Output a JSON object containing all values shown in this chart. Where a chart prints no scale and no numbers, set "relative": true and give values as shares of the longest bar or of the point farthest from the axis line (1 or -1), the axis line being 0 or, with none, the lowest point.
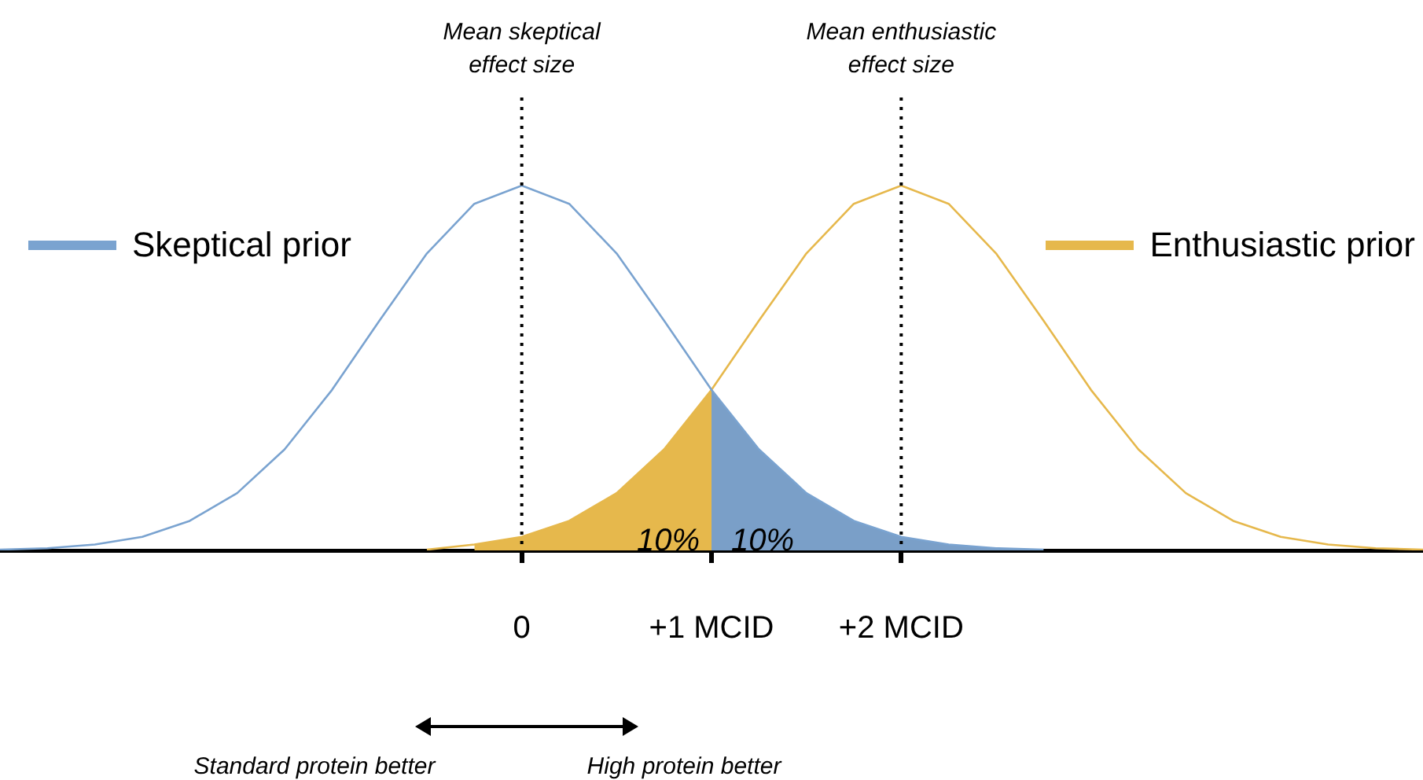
{
  "chart_data": {
    "type": "line",
    "relative": true,
    "marker": "none",
    "grid": false,
    "legend": "top",
    "xlim": [
      -2.75,
      4.75
    ],
    "xticks": [
      {
        "value": 0,
        "label": "0"
      },
      {
        "value": 1,
        "label": "+1 MCID"
      },
      {
        "value": 2,
        "label": "+2 MCID"
      }
    ],
    "series": [
      {
        "name": "Skeptical prior",
        "color": "#7aa3d0",
        "x": [
          -2.75,
          -2.5,
          -2.25,
          -2,
          -1.75,
          -1.5,
          -1.25,
          -1,
          -0.75,
          -0.5,
          -0.25,
          0,
          0.25,
          0.5,
          0.75,
          1,
          1.25,
          1.5,
          1.75,
          2,
          2.25,
          2.5,
          2.75
        ],
        "values": [
          0.002,
          0.006,
          0.016,
          0.037,
          0.081,
          0.157,
          0.277,
          0.44,
          0.63,
          0.814,
          0.95,
          1,
          0.95,
          0.814,
          0.63,
          0.44,
          0.277,
          0.157,
          0.081,
          0.037,
          0.016,
          0.006,
          0.002
        ]
      },
      {
        "name": "Enthusiastic prior",
        "color": "#e6b84c",
        "x": [
          -0.5,
          -0.25,
          0,
          0.25,
          0.5,
          0.75,
          1,
          1.25,
          1.5,
          1.75,
          2,
          2.25,
          2.5,
          2.75,
          3,
          3.25,
          3.5,
          3.75,
          4,
          4.25,
          4.5,
          4.75
        ],
        "values": [
          0.002,
          0.016,
          0.037,
          0.081,
          0.157,
          0.277,
          0.44,
          0.63,
          0.814,
          0.95,
          1,
          0.95,
          0.814,
          0.63,
          0.44,
          0.277,
          0.157,
          0.081,
          0.037,
          0.016,
          0.006,
          0.002
        ]
      },
      {
        "type": "area",
        "color": "#e6b84c",
        "x": [
          -0.25,
          0,
          0.25,
          0.5,
          0.75,
          1
        ],
        "values": [
          0.016,
          0.037,
          0.081,
          0.157,
          0.277,
          0.44
        ]
      },
      {
        "type": "area",
        "color": "#7a9fc8",
        "x": [
          1,
          1.25,
          1.5,
          1.75,
          2,
          2.25,
          2.5,
          2.75
        ],
        "values": [
          0.44,
          0.277,
          0.157,
          0.081,
          0.037,
          0.016,
          0.006,
          0.002
        ]
      }
    ],
    "ref_lines": [
      {
        "axis": "x",
        "value": 0,
        "label": "Mean skeptical effect size",
        "line_style": "dotted",
        "color": "#000000"
      },
      {
        "axis": "x",
        "value": 2,
        "label": "Mean enthusiastic effect size",
        "line_style": "dotted",
        "color": "#000000"
      }
    ],
    "annotations": [
      "10%",
      "10%",
      "Standard protein better",
      "High protein better"
    ]
  }
}
